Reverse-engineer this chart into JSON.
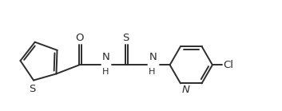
{
  "line_color": "#2d2d2d",
  "bg_color": "#ffffff",
  "line_width": 1.4,
  "font_size": 9.5,
  "figsize": [
    3.53,
    1.39
  ],
  "dpi": 100,
  "xlim": [
    0,
    9.5
  ],
  "ylim": [
    0,
    3.5
  ]
}
